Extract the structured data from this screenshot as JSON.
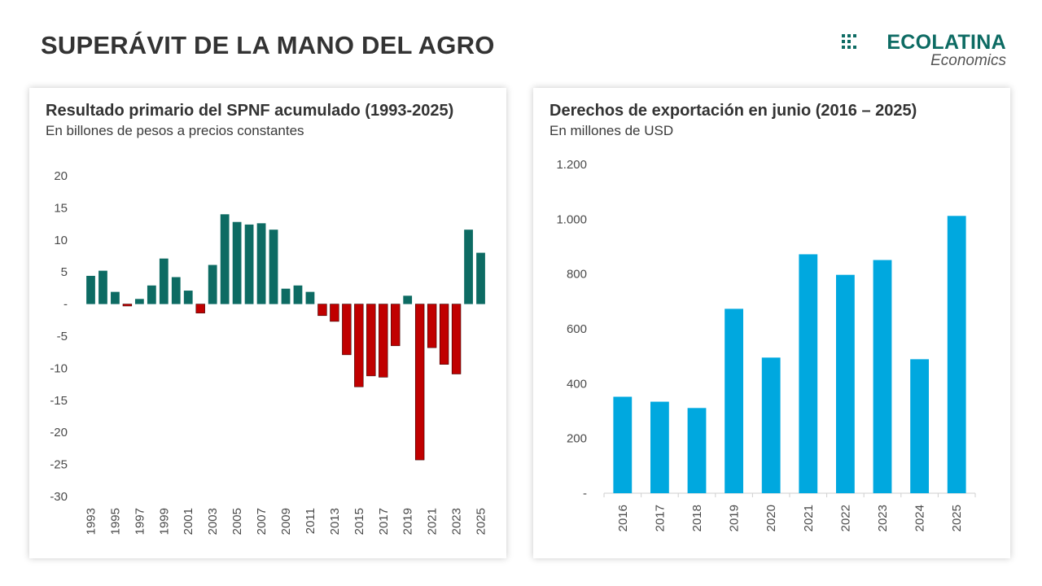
{
  "header": {
    "title": "SUPERÁVIT DE LA MANO DEL AGRO",
    "logo_text": "ECOLATINA",
    "logo_sub": "Economics"
  },
  "colors": {
    "positive": "#0d6b63",
    "negative": "#c00000",
    "bar_blue": "#00a8df",
    "logo": "#0d6b63"
  },
  "chart_data": [
    {
      "type": "bar",
      "title": "Resultado primario del SPNF acumulado (1993-2025)",
      "subtitle": "En billones de pesos a precios constantes",
      "categories": [
        "1993",
        "1994",
        "1995",
        "1996",
        "1997",
        "1998",
        "1999",
        "2000",
        "2001",
        "2002",
        "2003",
        "2004",
        "2005",
        "2006",
        "2007",
        "2008",
        "2009",
        "2010",
        "2011",
        "2012",
        "2013",
        "2014",
        "2015",
        "2016",
        "2017",
        "2018",
        "2019",
        "2020",
        "2021",
        "2022",
        "2023",
        "2024",
        "2025"
      ],
      "category_labels": [
        "1993",
        "",
        "1995",
        "",
        "1997",
        "",
        "1999",
        "",
        "2001",
        "",
        "2003",
        "",
        "2005",
        "",
        "2007",
        "",
        "2009",
        "",
        "2011",
        "",
        "2013",
        "",
        "2015",
        "",
        "2017",
        "",
        "2019",
        "",
        "2021",
        "",
        "2023",
        "",
        "2025"
      ],
      "values": [
        4.4,
        5.2,
        1.9,
        -0.3,
        0.8,
        2.9,
        7.1,
        4.2,
        2.1,
        -1.4,
        6.1,
        14.0,
        12.8,
        12.4,
        12.6,
        11.6,
        2.4,
        2.9,
        1.9,
        -1.8,
        -2.7,
        -7.9,
        -12.9,
        -11.2,
        -11.4,
        -6.5,
        1.3,
        -24.3,
        -6.8,
        -9.4,
        -10.9,
        11.6,
        8.0
      ],
      "ylim": [
        -30,
        20
      ],
      "yticks": [
        20,
        15,
        10,
        5,
        0,
        -5,
        -10,
        -15,
        -20,
        -25,
        -30
      ],
      "ytick_labels": [
        "20",
        "15",
        "10",
        "5",
        "-",
        "-5",
        "-10",
        "-15",
        "-20",
        "-25",
        "-30"
      ],
      "xlabel": "",
      "ylabel": ""
    },
    {
      "type": "bar",
      "title": "Derechos de exportación en junio (2016 – 2025)",
      "subtitle": "En millones de USD",
      "categories": [
        "2016",
        "2017",
        "2018",
        "2019",
        "2020",
        "2021",
        "2022",
        "2023",
        "2024",
        "2025"
      ],
      "values": [
        352,
        334,
        311,
        673,
        495,
        872,
        797,
        851,
        489,
        1012
      ],
      "ylim": [
        0,
        1200
      ],
      "yticks": [
        1200,
        1000,
        800,
        600,
        400,
        200,
        0
      ],
      "ytick_labels": [
        "1.200",
        "1.000",
        "800",
        "600",
        "400",
        "200",
        "-"
      ],
      "xlabel": "",
      "ylabel": ""
    }
  ]
}
